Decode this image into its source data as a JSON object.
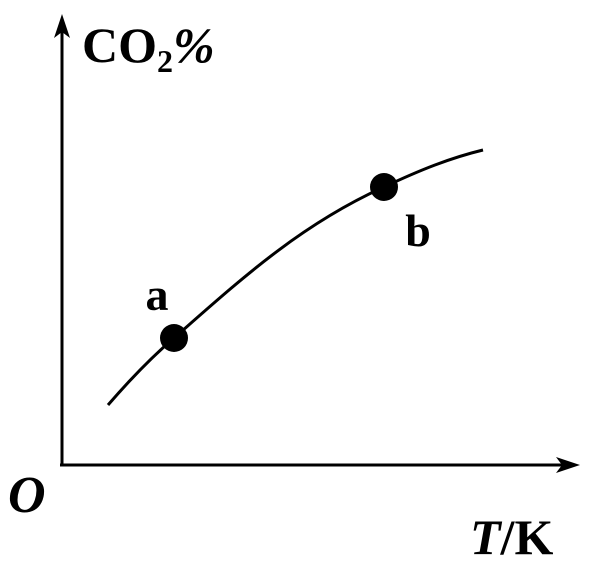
{
  "y_axis_label": {
    "main": "CO",
    "subscript": "2",
    "suffix": "%"
  },
  "x_axis_label": {
    "symbol": "T",
    "unit": "/K"
  },
  "origin_label": "O",
  "points": [
    {
      "label": "a"
    },
    {
      "label": "b"
    }
  ]
}
